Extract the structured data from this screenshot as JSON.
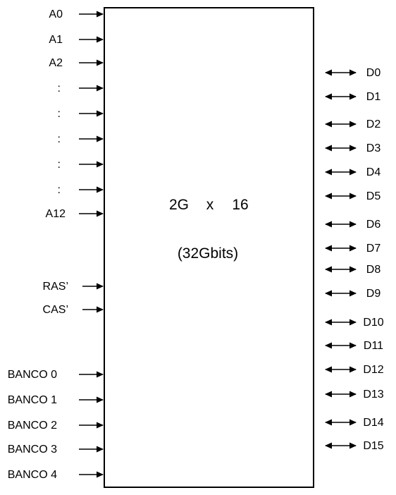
{
  "chip": {
    "organization_left": "2G",
    "organization_x": "x",
    "organization_right": "16",
    "capacity": "(32Gbits)"
  },
  "inputs": [
    {
      "label": "A0"
    },
    {
      "label": "A1"
    },
    {
      "label": "A2"
    },
    {
      "label": ":"
    },
    {
      "label": ":"
    },
    {
      "label": ":"
    },
    {
      "label": ":"
    },
    {
      "label": ":"
    },
    {
      "label": "A12"
    },
    {
      "label": "RAS’"
    },
    {
      "label": "CAS’"
    },
    {
      "label": "BANCO 0"
    },
    {
      "label": "BANCO 1"
    },
    {
      "label": "BANCO 2"
    },
    {
      "label": "BANCO 3"
    },
    {
      "label": "BANCO 4"
    }
  ],
  "data_pins": [
    {
      "label": "D0"
    },
    {
      "label": "D1"
    },
    {
      "label": "D2"
    },
    {
      "label": "D3"
    },
    {
      "label": "D4"
    },
    {
      "label": "D5"
    },
    {
      "label": "D6"
    },
    {
      "label": "D7"
    },
    {
      "label": "D8"
    },
    {
      "label": "D9"
    },
    {
      "label": "D10"
    },
    {
      "label": "D11"
    },
    {
      "label": "D12"
    },
    {
      "label": "D13"
    },
    {
      "label": "D14"
    },
    {
      "label": "D15"
    }
  ]
}
